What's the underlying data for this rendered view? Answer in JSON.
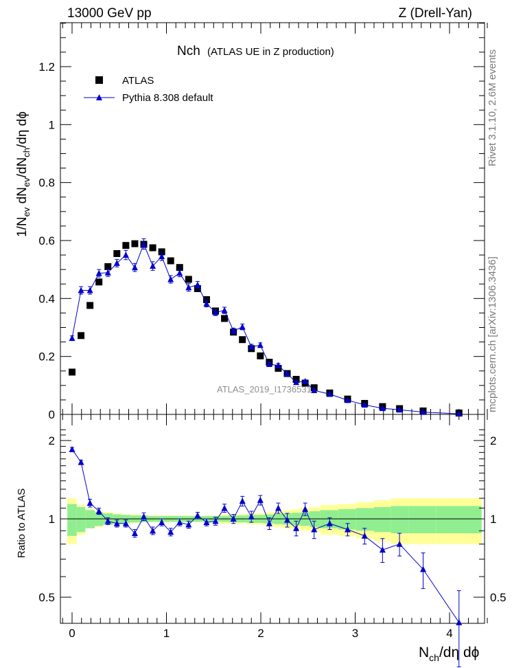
{
  "header": {
    "left": "13000 GeV pp",
    "right": "Z (Drell-Yan)"
  },
  "side_labels": {
    "rivet": "Rivet 3.1.10,  2.6M events",
    "mcplots": "mcplots.cern.ch [arXiv:1306.3436]"
  },
  "watermark": "ATLAS_2019_I1736531",
  "colors": {
    "data": "#000000",
    "mc": "#0000cc",
    "band_stat": "#90ee90",
    "band_total": "#ffff99"
  },
  "chart_data": [
    {
      "type": "scatter",
      "title_main": "Nch",
      "title_sub": "(ATLAS UE in Z production)",
      "ylabel": "1/N_ev dN_ev/dN_ch/dη dϕ",
      "xlabel": "N_ch/dη dϕ",
      "xlim": [
        -0.13,
        4.42
      ],
      "ylim": [
        0,
        1.36
      ],
      "yticks": [
        "0",
        "0.2",
        "0.4",
        "0.6",
        "0.8",
        "1",
        "1.2"
      ],
      "legend_placement": "top-left",
      "series": [
        {
          "name": "ATLAS",
          "marker": "square",
          "x": [
            0.0,
            0.095,
            0.19,
            0.285,
            0.38,
            0.475,
            0.57,
            0.665,
            0.76,
            0.855,
            0.95,
            1.045,
            1.14,
            1.235,
            1.33,
            1.425,
            1.52,
            1.615,
            1.71,
            1.805,
            1.9,
            1.995,
            2.09,
            2.185,
            2.28,
            2.375,
            2.47,
            2.565,
            2.73,
            2.92,
            3.1,
            3.29,
            3.47,
            3.72,
            4.1
          ],
          "y": [
            0.146,
            0.272,
            0.376,
            0.457,
            0.51,
            0.555,
            0.583,
            0.589,
            0.587,
            0.575,
            0.561,
            0.53,
            0.507,
            0.466,
            0.434,
            0.396,
            0.357,
            0.331,
            0.284,
            0.258,
            0.227,
            0.202,
            0.18,
            0.159,
            0.141,
            0.121,
            0.108,
            0.092,
            0.074,
            0.053,
            0.038,
            0.027,
            0.02,
            0.012,
            0.005
          ]
        },
        {
          "name": "Pythia 8.308 default",
          "marker": "triangle",
          "x": [
            0.0,
            0.095,
            0.19,
            0.285,
            0.38,
            0.475,
            0.57,
            0.665,
            0.76,
            0.855,
            0.95,
            1.045,
            1.14,
            1.235,
            1.33,
            1.425,
            1.52,
            1.615,
            1.71,
            1.805,
            1.9,
            1.995,
            2.09,
            2.185,
            2.28,
            2.375,
            2.47,
            2.565,
            2.73,
            2.92,
            3.1,
            3.29,
            3.47,
            3.72,
            4.1
          ],
          "y": [
            0.263,
            0.428,
            0.428,
            0.487,
            0.489,
            0.522,
            0.55,
            0.507,
            0.588,
            0.512,
            0.545,
            0.466,
            0.488,
            0.438,
            0.447,
            0.382,
            0.352,
            0.359,
            0.288,
            0.302,
            0.233,
            0.239,
            0.173,
            0.169,
            0.14,
            0.111,
            0.114,
            0.083,
            0.07,
            0.049,
            0.033,
            0.021,
            0.016,
            0.008,
            0.002
          ],
          "err": [
            0.008,
            0.013,
            0.013,
            0.013,
            0.013,
            0.013,
            0.016,
            0.014,
            0.018,
            0.015,
            0.014,
            0.013,
            0.013,
            0.013,
            0.012,
            0.011,
            0.011,
            0.011,
            0.01,
            0.01,
            0.009,
            0.008,
            0.007,
            0.007,
            0.006,
            0.005,
            0.005,
            0.004,
            0.003,
            0.003,
            0.002,
            0.002,
            0.002,
            0.001,
            0.001
          ]
        }
      ]
    },
    {
      "type": "scatter",
      "ylabel": "Ratio to ATLAS",
      "xlabel": "N_ch/dη dϕ",
      "xlim": [
        -0.13,
        4.42
      ],
      "ylim": [
        0.4,
        2.3
      ],
      "yticks": [
        "0.5",
        "1",
        "2"
      ],
      "xticks": [
        "0",
        "1",
        "2",
        "3",
        "4"
      ],
      "reference_line": 1.0,
      "bands": {
        "x_edges": [
          -0.05,
          0.05,
          0.14,
          0.24,
          0.33,
          0.43,
          0.52,
          0.62,
          0.71,
          0.81,
          0.9,
          1.0,
          1.09,
          1.19,
          1.28,
          1.38,
          1.47,
          1.57,
          1.66,
          1.76,
          1.85,
          1.95,
          2.04,
          2.14,
          2.23,
          2.33,
          2.42,
          2.52,
          2.63,
          2.82,
          3.01,
          3.2,
          3.38,
          3.57,
          3.86,
          4.34
        ],
        "stat_lo": [
          0.86,
          0.89,
          0.92,
          0.94,
          0.95,
          0.96,
          0.965,
          0.97,
          0.97,
          0.975,
          0.975,
          0.975,
          0.975,
          0.975,
          0.975,
          0.975,
          0.975,
          0.975,
          0.97,
          0.97,
          0.965,
          0.965,
          0.96,
          0.955,
          0.95,
          0.945,
          0.94,
          0.93,
          0.92,
          0.91,
          0.9,
          0.89,
          0.88,
          0.88,
          0.88
        ],
        "stat_hi": [
          1.14,
          1.11,
          1.08,
          1.06,
          1.05,
          1.04,
          1.035,
          1.03,
          1.03,
          1.025,
          1.025,
          1.025,
          1.025,
          1.025,
          1.025,
          1.025,
          1.025,
          1.025,
          1.03,
          1.03,
          1.035,
          1.035,
          1.04,
          1.045,
          1.05,
          1.055,
          1.06,
          1.07,
          1.08,
          1.09,
          1.1,
          1.11,
          1.12,
          1.12,
          1.12
        ],
        "total_lo": [
          0.8,
          0.87,
          0.92,
          0.93,
          0.95,
          0.95,
          0.96,
          0.96,
          0.97,
          0.97,
          0.97,
          0.97,
          0.97,
          0.97,
          0.97,
          0.97,
          0.97,
          0.96,
          0.96,
          0.96,
          0.95,
          0.95,
          0.94,
          0.93,
          0.92,
          0.91,
          0.9,
          0.89,
          0.87,
          0.86,
          0.84,
          0.82,
          0.8,
          0.8,
          0.8
        ],
        "total_hi": [
          1.2,
          1.13,
          1.09,
          1.07,
          1.06,
          1.05,
          1.04,
          1.04,
          1.035,
          1.03,
          1.03,
          1.03,
          1.03,
          1.03,
          1.03,
          1.03,
          1.03,
          1.04,
          1.04,
          1.04,
          1.05,
          1.05,
          1.06,
          1.07,
          1.08,
          1.09,
          1.1,
          1.11,
          1.13,
          1.14,
          1.16,
          1.18,
          1.2,
          1.2,
          1.2
        ]
      },
      "series": [
        {
          "name": "Pythia 8.308 default",
          "x": [
            0.0,
            0.095,
            0.19,
            0.285,
            0.38,
            0.475,
            0.57,
            0.665,
            0.76,
            0.855,
            0.95,
            1.045,
            1.14,
            1.235,
            1.33,
            1.425,
            1.52,
            1.615,
            1.71,
            1.805,
            1.9,
            1.995,
            2.09,
            2.185,
            2.28,
            2.375,
            2.47,
            2.565,
            2.73,
            2.92,
            3.1,
            3.29,
            3.47,
            3.72,
            4.1
          ],
          "y": [
            1.85,
            1.65,
            1.15,
            1.07,
            0.98,
            0.96,
            0.96,
            0.88,
            1.02,
            0.9,
            0.97,
            0.89,
            0.97,
            0.95,
            1.03,
            0.97,
            0.98,
            1.1,
            1.0,
            1.17,
            1.02,
            1.18,
            0.96,
            1.1,
            0.99,
            0.92,
            1.09,
            0.91,
            0.96,
            0.91,
            0.86,
            0.76,
            0.8,
            0.64,
            0.4
          ],
          "err": [
            0.03,
            0.03,
            0.04,
            0.03,
            0.03,
            0.03,
            0.03,
            0.03,
            0.035,
            0.03,
            0.03,
            0.03,
            0.03,
            0.03,
            0.03,
            0.03,
            0.035,
            0.04,
            0.04,
            0.05,
            0.05,
            0.05,
            0.05,
            0.05,
            0.06,
            0.06,
            0.06,
            0.07,
            0.05,
            0.05,
            0.06,
            0.08,
            0.08,
            0.1,
            0.13
          ]
        }
      ]
    }
  ]
}
